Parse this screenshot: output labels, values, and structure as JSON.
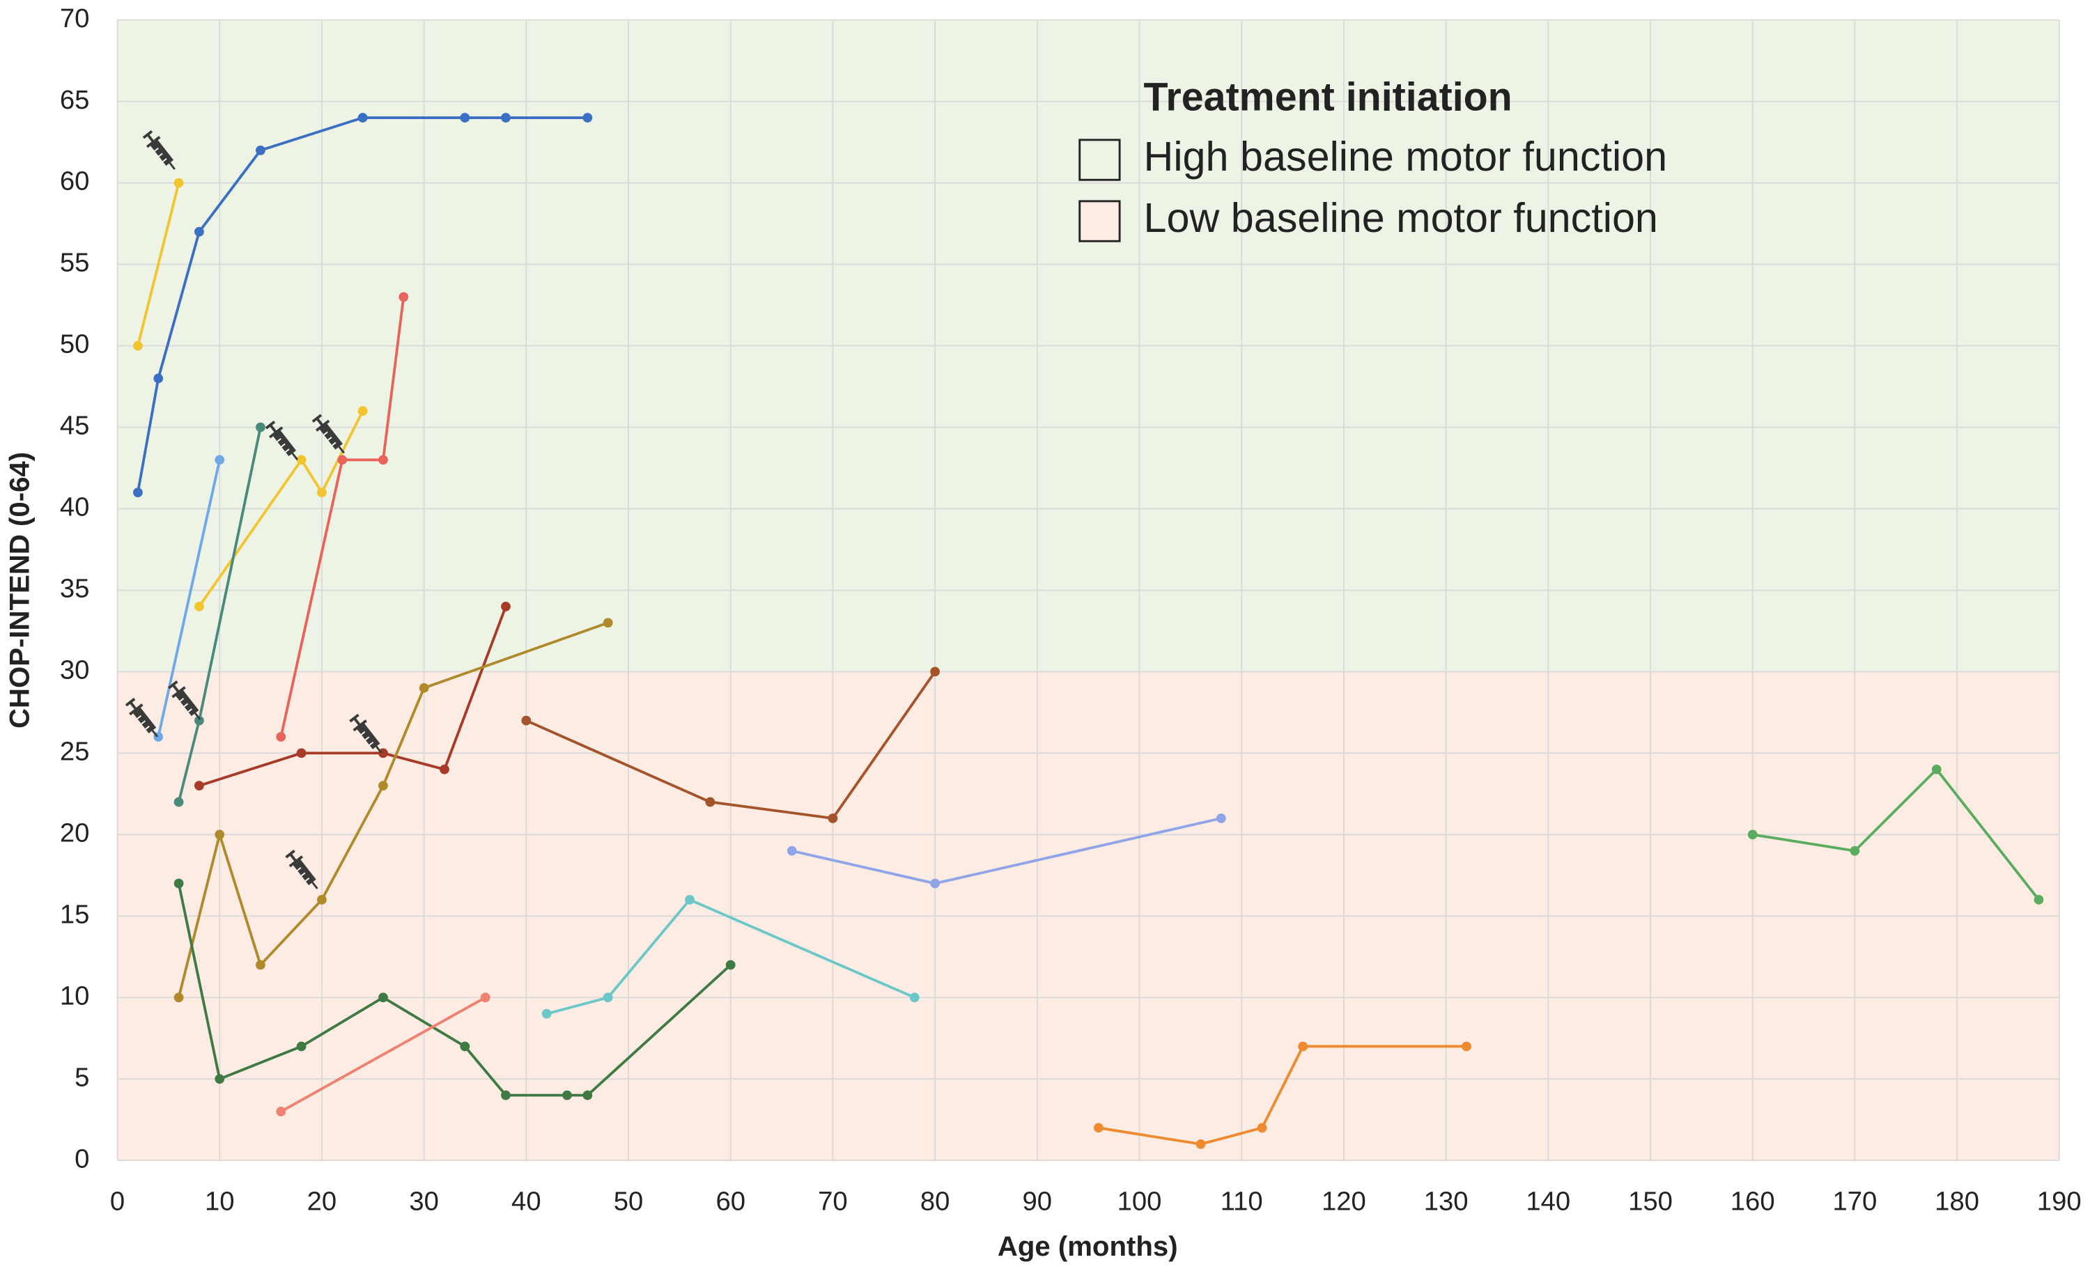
{
  "chart_data": {
    "type": "line",
    "xlabel": "Age (months)",
    "ylabel": "CHOP-INTEND (0-64)",
    "legend_title": "Treatment initiation",
    "xlim": [
      0,
      190
    ],
    "ylim": [
      0,
      70
    ],
    "xticks": [
      0,
      10,
      20,
      30,
      40,
      50,
      60,
      70,
      80,
      90,
      100,
      110,
      120,
      130,
      140,
      150,
      160,
      170,
      180,
      190
    ],
    "yticks": [
      0,
      5,
      10,
      15,
      20,
      25,
      30,
      35,
      40,
      45,
      50,
      55,
      60,
      65,
      70
    ],
    "grid": true,
    "legend_position": "upper-right",
    "bands": [
      {
        "name": "High baseline motor function",
        "color": "#edf4e6",
        "range": [
          30,
          70
        ]
      },
      {
        "name": "Low baseline motor function",
        "color": "#fcece3",
        "range": [
          0,
          30
        ]
      }
    ],
    "series": [
      {
        "color": "#3a6fc4",
        "x": [
          2,
          4,
          8,
          14,
          24,
          34,
          38,
          46
        ],
        "values": [
          41,
          48,
          57,
          62,
          64,
          64,
          64,
          64
        ]
      },
      {
        "color": "#f2c530",
        "x": [
          2,
          6
        ],
        "values": [
          50,
          60
        ]
      },
      {
        "color": "#f2c530",
        "x": [
          8,
          18,
          20,
          24
        ],
        "values": [
          34,
          43,
          41,
          46
        ]
      },
      {
        "color": "#6fa8e8",
        "x": [
          4,
          10
        ],
        "values": [
          26,
          43
        ]
      },
      {
        "color": "#4a8a7a",
        "x": [
          6,
          8,
          14
        ],
        "values": [
          22,
          27,
          45
        ]
      },
      {
        "color": "#e8645a",
        "x": [
          16,
          22,
          26,
          28
        ],
        "values": [
          26,
          43,
          43,
          53
        ]
      },
      {
        "color": "#a83a28",
        "x": [
          8,
          18,
          26,
          32,
          38
        ],
        "values": [
          23,
          25,
          25,
          24,
          34
        ]
      },
      {
        "color": "#b08a2a",
        "x": [
          6,
          10,
          14,
          20,
          26,
          30,
          48
        ],
        "values": [
          10,
          20,
          12,
          16,
          23,
          29,
          33
        ]
      },
      {
        "color": "#a5532a",
        "x": [
          40,
          58,
          70,
          80
        ],
        "values": [
          27,
          22,
          21,
          30
        ]
      },
      {
        "color": "#8fa5e8",
        "x": [
          66,
          80,
          108
        ],
        "values": [
          19,
          17,
          21
        ]
      },
      {
        "color": "#5aad5e",
        "x": [
          160,
          170,
          178,
          188
        ],
        "values": [
          20,
          19,
          24,
          16
        ]
      },
      {
        "color": "#3f7a44",
        "x": [
          6,
          10,
          18,
          26,
          34,
          38,
          44,
          46,
          60
        ],
        "values": [
          17,
          5,
          7,
          10,
          7,
          4,
          4,
          4,
          12
        ]
      },
      {
        "color": "#f08070",
        "x": [
          16,
          36
        ],
        "values": [
          3,
          10
        ]
      },
      {
        "color": "#6cc8c8",
        "x": [
          42,
          48,
          56,
          78
        ],
        "values": [
          9,
          10,
          16,
          10
        ]
      },
      {
        "color": "#f08a30",
        "x": [
          96,
          106,
          112,
          116,
          132
        ],
        "values": [
          2,
          1,
          2,
          7,
          7
        ]
      }
    ]
  }
}
